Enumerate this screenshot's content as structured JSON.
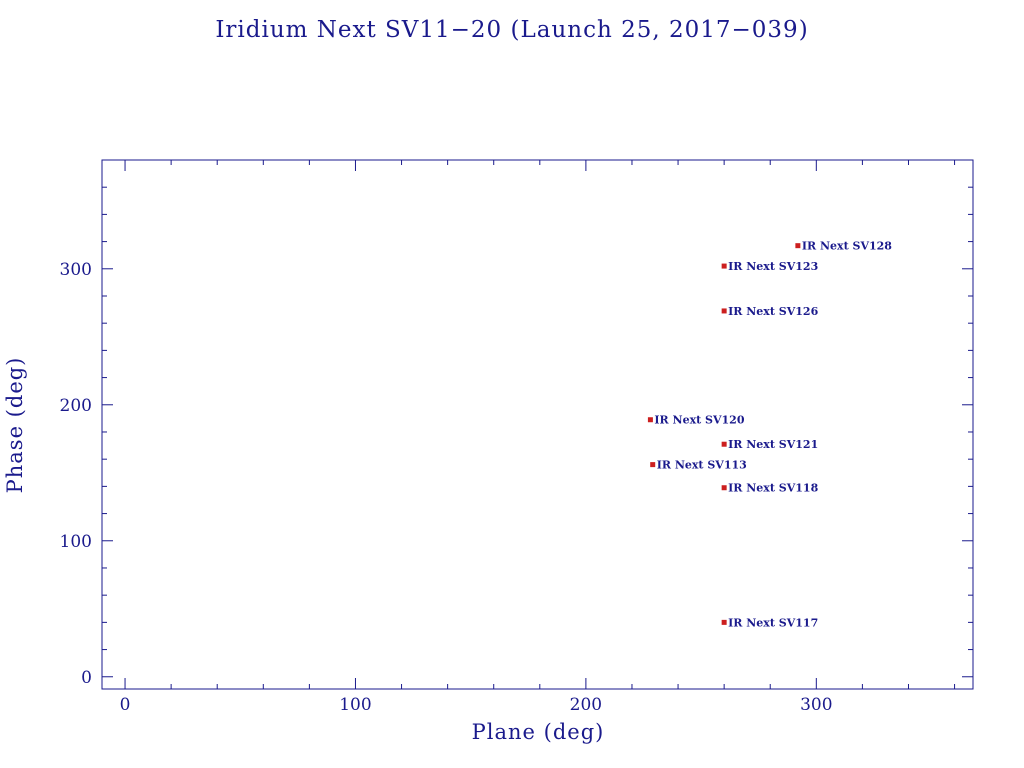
{
  "colors": {
    "axis": "#1a1a8c",
    "point": "#cc1f1f",
    "background": "#ffffff"
  },
  "chart_data": {
    "type": "scatter",
    "title": "Iridium Next SV11−20 (Launch 25, 2017−039)",
    "xlabel": "Plane (deg)",
    "ylabel": "Phase (deg)",
    "xlim": [
      -10,
      368
    ],
    "ylim": [
      -9,
      380
    ],
    "x_ticks": [
      0,
      100,
      200,
      300
    ],
    "x_tick_labels": [
      "0",
      "100",
      "200",
      "300"
    ],
    "y_ticks": [
      0,
      100,
      200,
      300
    ],
    "y_tick_labels": [
      "0",
      "100",
      "200",
      "300"
    ],
    "x_minor_step": 20,
    "y_minor_step": 20,
    "grid": false,
    "points": [
      {
        "label": "IR Next SV128",
        "x": 292,
        "y": 317
      },
      {
        "label": "IR Next SV123",
        "x": 260,
        "y": 302
      },
      {
        "label": "IR Next SV126",
        "x": 260,
        "y": 269
      },
      {
        "label": "IR Next SV120",
        "x": 228,
        "y": 189
      },
      {
        "label": "IR Next SV121",
        "x": 260,
        "y": 171
      },
      {
        "label": "IR Next SV113",
        "x": 229,
        "y": 156
      },
      {
        "label": "IR Next SV118",
        "x": 260,
        "y": 139
      },
      {
        "label": "IR Next SV117",
        "x": 260,
        "y": 40
      }
    ]
  }
}
